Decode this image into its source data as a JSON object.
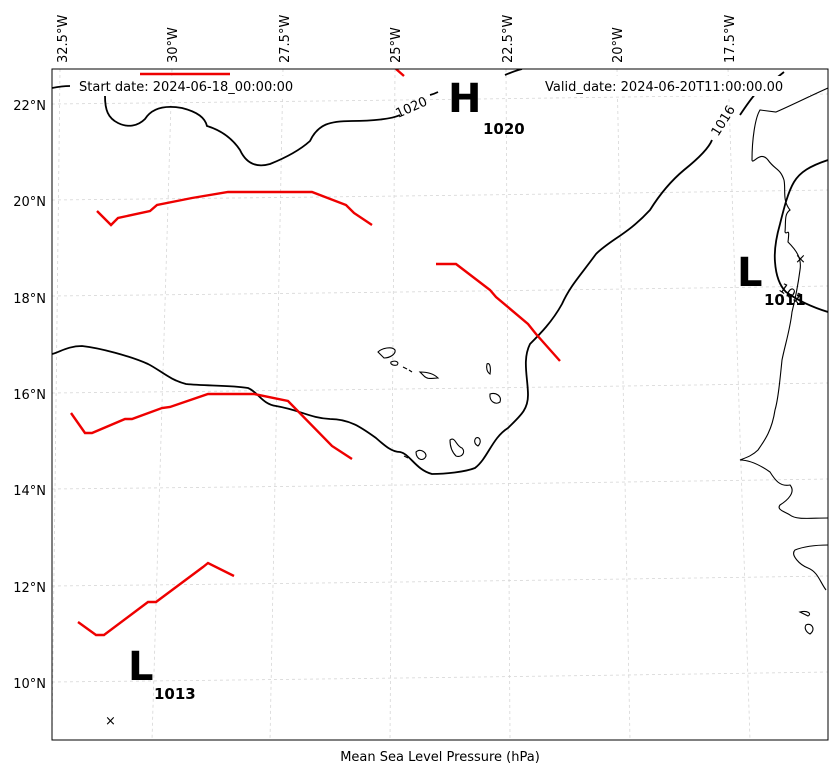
{
  "map": {
    "start_date": "Start date: 2024-06-18_00:00:00",
    "valid_date": "Valid_date: 2024-06-20T11:00:00.00",
    "x_axis_label": "Mean Sea Level Pressure (hPa)",
    "lon_ticks": [
      "32.5°W",
      "30°W",
      "27.5°W",
      "25°W",
      "22.5°W",
      "20°W",
      "17.5°W"
    ],
    "lat_ticks": [
      "22°N",
      "20°N",
      "18°N",
      "16°N",
      "14°N",
      "12°N",
      "10°N"
    ],
    "pressure_centers": [
      {
        "type": "H",
        "label": "H",
        "value": "1020"
      },
      {
        "type": "L",
        "label": "L",
        "value": "1011"
      },
      {
        "type": "L",
        "label": "L",
        "value": "1013"
      }
    ],
    "isobar_labels": [
      "1020",
      "1016",
      "101"
    ],
    "center_marker": "×",
    "colors": {
      "front": "#ee0000",
      "isobar": "#000000",
      "grid": "#d6d6d6"
    }
  }
}
